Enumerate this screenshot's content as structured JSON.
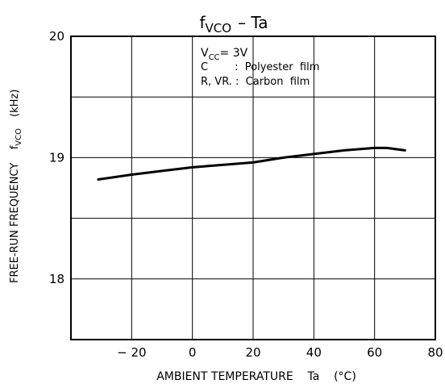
{
  "chart_data": {
    "type": "line",
    "title_main": "f",
    "title_sub": "VCO",
    "title_rest": "–  Ta",
    "xlabel": "AMBIENT TEMPERATURE    Ta    (°C)",
    "ylabel_main": "FREE-RUN FREQUENCY    f",
    "ylabel_sub": "VCO",
    "ylabel_unit": "(kHz)",
    "xlim": [
      -40,
      80
    ],
    "ylim": [
      17.5,
      20
    ],
    "x_ticks": [
      -20,
      0,
      20,
      40,
      60,
      80
    ],
    "x_tick_labels": [
      "− 20",
      "0",
      "20",
      "40",
      "60",
      "80"
    ],
    "y_ticks": [
      18,
      19,
      20
    ],
    "y_tick_labels": [
      "18",
      "19",
      "20"
    ],
    "grid": true,
    "annotations": {
      "vcc_main": "V",
      "vcc_sub": "CC",
      "vcc_rest": "= 3V",
      "line2": "C        :  Polyester  film",
      "line3": "R, VR. :  Carbon  film"
    },
    "series": [
      {
        "x": [
          -31,
          -20,
          -10,
          0,
          10,
          20,
          30,
          40,
          50,
          60,
          64,
          70
        ],
        "y": [
          18.82,
          18.86,
          18.89,
          18.92,
          18.94,
          18.96,
          19.0,
          19.03,
          19.06,
          19.08,
          19.08,
          19.06
        ]
      }
    ]
  }
}
